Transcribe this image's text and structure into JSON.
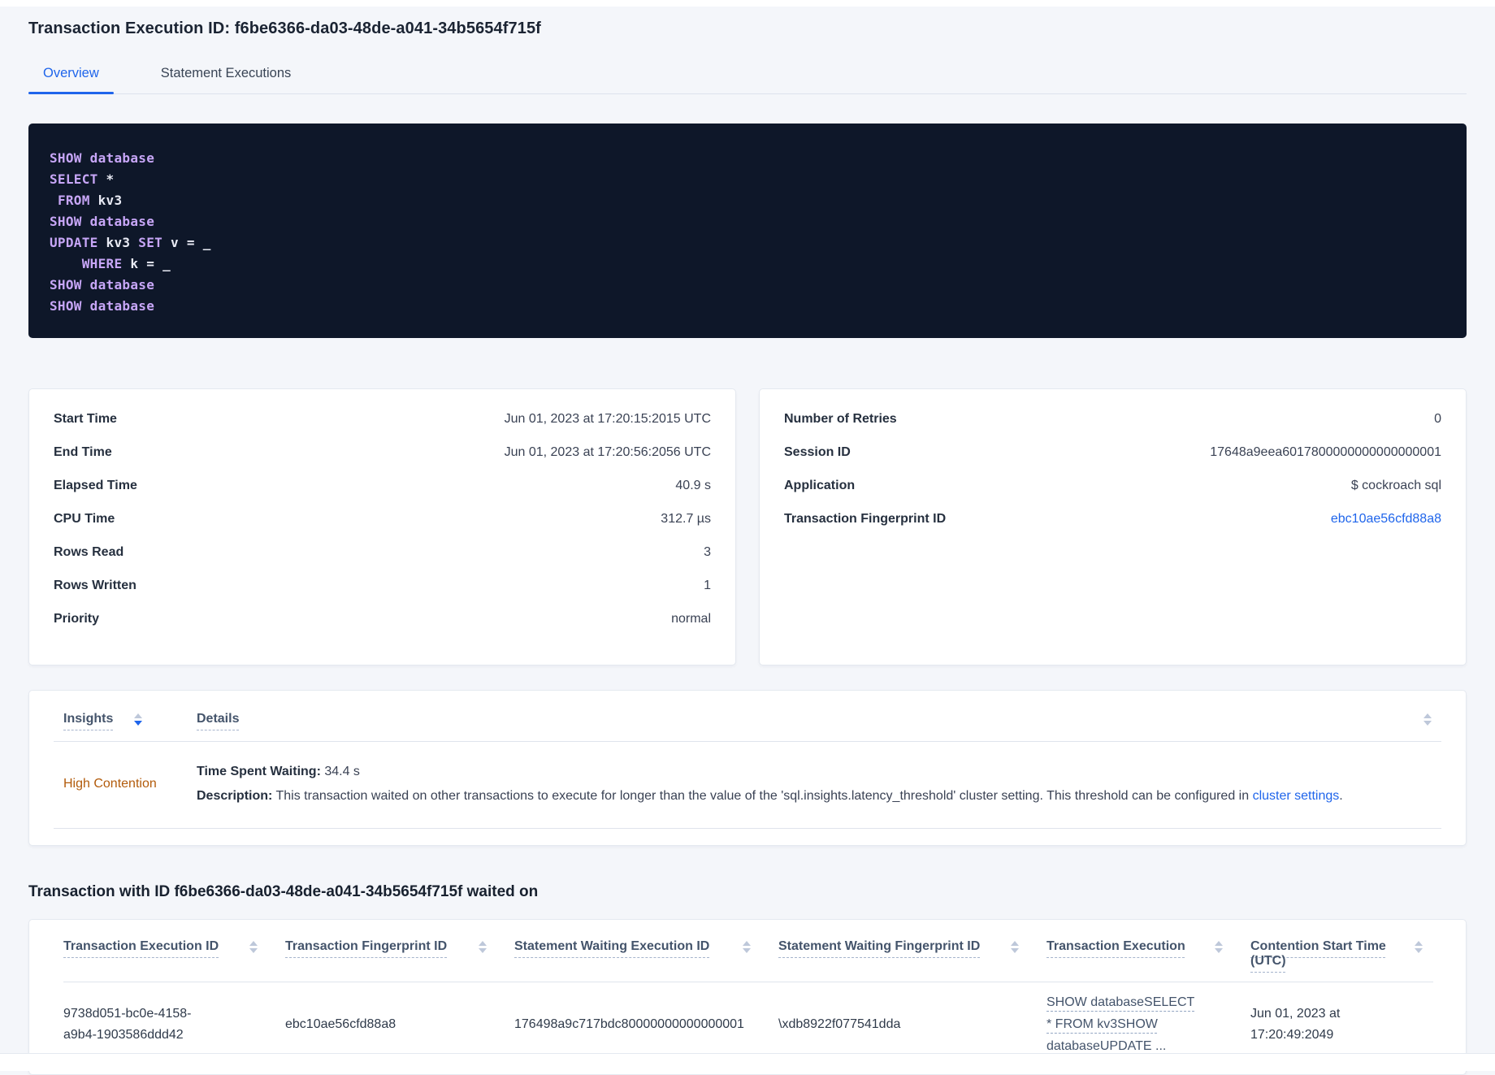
{
  "header": {
    "title": "Transaction Execution ID: f6be6366-da03-48de-a041-34b5654f715f",
    "tabs": [
      {
        "label": "Overview"
      },
      {
        "label": "Statement Executions"
      }
    ]
  },
  "sql": {
    "l1": "SHOW database",
    "l2a": "SELECT",
    "l2b": " *",
    "l3a": " ",
    "l3b": "FROM",
    "l3c": " kv3",
    "l4": "SHOW database",
    "l5a": "UPDATE",
    "l5b": " kv3 ",
    "l5c": "SET",
    "l5d": " v = _",
    "l6a": "    ",
    "l6b": "WHERE",
    "l6c": " k = _",
    "l7": "SHOW database",
    "l8": "SHOW database"
  },
  "summary_left": {
    "rows": [
      {
        "label": "Start Time",
        "value": "Jun 01, 2023 at 17:20:15:2015 UTC"
      },
      {
        "label": "End Time",
        "value": "Jun 01, 2023 at 17:20:56:2056 UTC"
      },
      {
        "label": "Elapsed Time",
        "value": "40.9 s"
      },
      {
        "label": "CPU Time",
        "value": "312.7 µs"
      },
      {
        "label": "Rows Read",
        "value": "3"
      },
      {
        "label": "Rows Written",
        "value": "1"
      },
      {
        "label": "Priority",
        "value": "normal"
      }
    ]
  },
  "summary_right": {
    "rows": [
      {
        "label": "Number of Retries",
        "value": "0"
      },
      {
        "label": "Session ID",
        "value": "17648a9eea6017800000000000000001"
      },
      {
        "label": "Application",
        "value": "$ cockroach sql"
      }
    ],
    "fingerprint_label": "Transaction Fingerprint ID",
    "fingerprint_value": "ebc10ae56cfd88a8"
  },
  "insights": {
    "col_insights": "Insights",
    "col_details": "Details",
    "row": {
      "insight": "High Contention",
      "waiting_label": "Time Spent Waiting:",
      "waiting_value": " 34.4 s",
      "description_label": "Description:",
      "description_text": " This transaction waited on other transactions to execute for longer than the value of the 'sql.insights.latency_threshold' cluster setting. This threshold can be configured in ",
      "description_link": "cluster settings",
      "description_suffix": "."
    }
  },
  "waited_on": {
    "heading": "Transaction with ID f6be6366-da03-48de-a041-34b5654f715f waited on",
    "columns": [
      "Transaction Execution ID",
      "Transaction Fingerprint ID",
      "Statement Waiting Execution ID",
      "Statement Waiting Fingerprint ID",
      "Transaction Execution",
      "Contention Start Time (UTC)"
    ],
    "row": {
      "transaction_execution_id": "9738d051-bc0e-4158-a9b4-1903586ddd42",
      "transaction_fingerprint_id": "ebc10ae56cfd88a8",
      "statement_waiting_execution_id": "176498a9c717bdc80000000000000001",
      "statement_waiting_fingerprint_id": "\\xdb8922f077541dda",
      "transaction_execution": "SHOW databaseSELECT * FROM kv3SHOW databaseUPDATE ...",
      "contention_start_time": "Jun 01, 2023 at 17:20:49:2049"
    }
  },
  "colors": {
    "accent_blue": "#1f65eb",
    "insight_orange": "#b25b0b",
    "code_background": "#0e1729",
    "code_keyword": "#c7a6f7"
  }
}
